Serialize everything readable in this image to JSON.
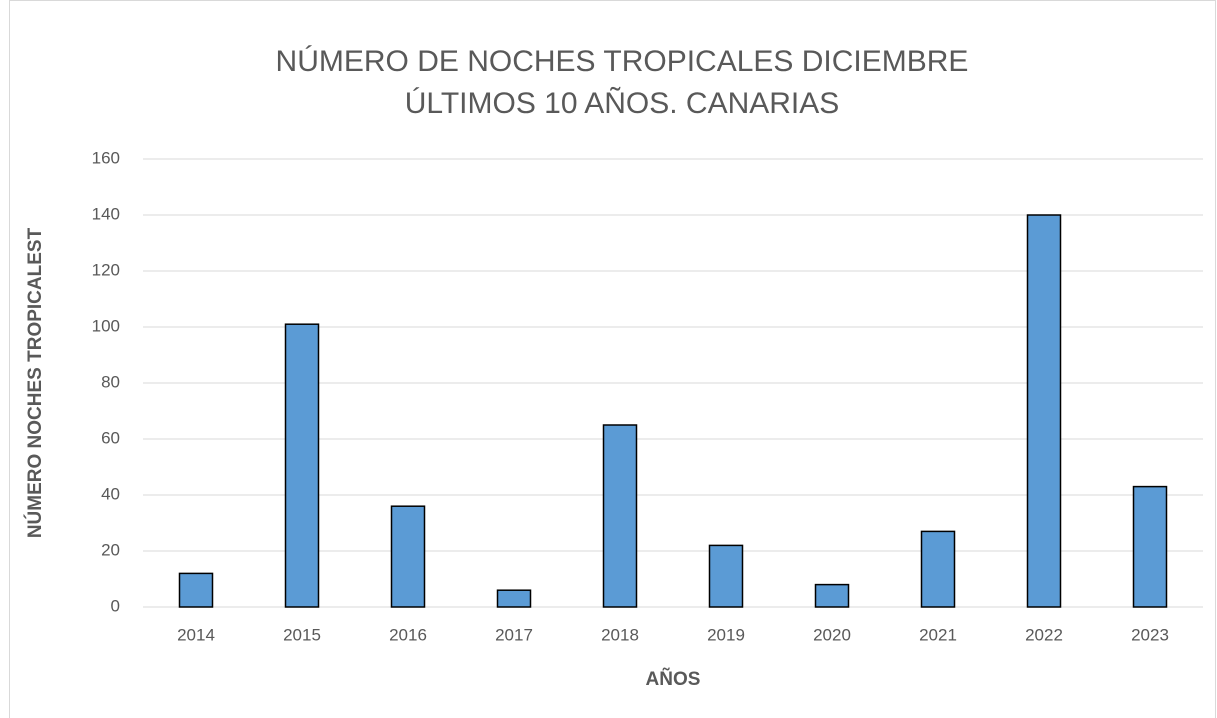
{
  "chart_data": {
    "type": "bar",
    "title": [
      "NÚMERO DE NOCHES TROPICALES DICIEMBRE",
      "ÚLTIMOS 10 AÑOS. CANARIAS"
    ],
    "x_label": "AÑOS",
    "y_label": "NÚMERO NOCHES TROPICALEST",
    "categories": [
      "2014",
      "2015",
      "2016",
      "2017",
      "2018",
      "2019",
      "2020",
      "2021",
      "2022",
      "2023"
    ],
    "values": [
      12,
      101,
      36,
      6,
      65,
      22,
      8,
      27,
      140,
      43
    ],
    "color": "#5b9bd5",
    "ylim": [
      0,
      160
    ],
    "yticks": [
      0,
      20,
      40,
      60,
      80,
      100,
      120,
      140,
      160
    ],
    "grid": true
  }
}
